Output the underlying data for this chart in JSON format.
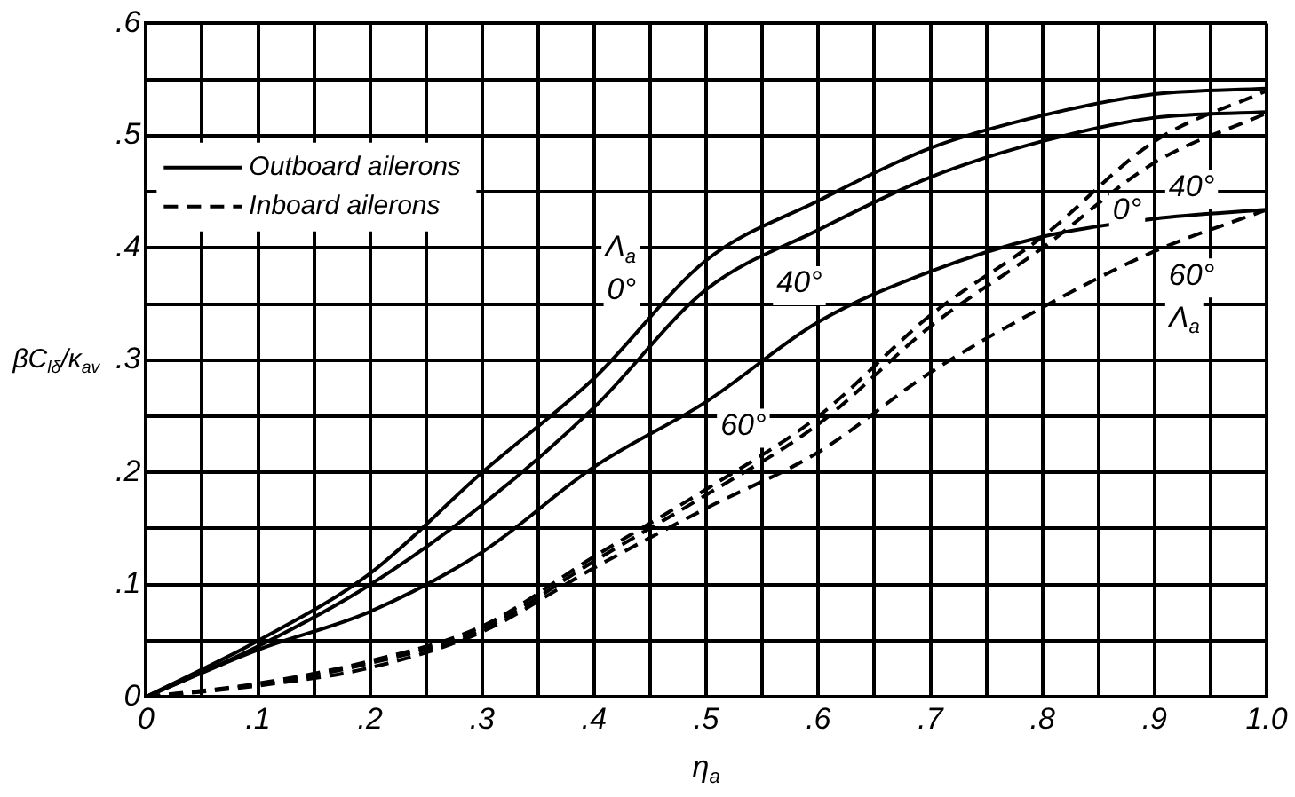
{
  "chart_data": {
    "type": "line",
    "xlabel": "η$_{a}$",
    "ylabel": "βC$_{lδ}$/κ$_{av}$",
    "x": [
      0,
      0.1,
      0.2,
      0.3,
      0.4,
      0.5,
      0.6,
      0.7,
      0.8,
      0.9,
      1.0
    ],
    "series": [
      {
        "name": "Outboard ailerons",
        "color": "#000000",
        "line_style": "solid",
        "values": [
          0,
          0.05,
          0.11,
          0.2,
          0.284,
          0.389,
          0.442,
          0.489,
          0.518,
          0.537,
          0.542
        ]
      },
      {
        "color": "#000000",
        "line_style": "solid",
        "values": [
          0,
          0.045,
          0.1,
          0.171,
          0.258,
          0.363,
          0.416,
          0.463,
          0.495,
          0.516,
          0.521
        ]
      },
      {
        "color": "#000000",
        "line_style": "solid",
        "values": [
          0,
          0.042,
          0.076,
          0.129,
          0.205,
          0.263,
          0.334,
          0.379,
          0.41,
          0.426,
          0.434
        ]
      },
      {
        "name": "Inboard ailerons",
        "color": "#000000",
        "line_style": "dashed",
        "values": [
          0,
          0.012,
          0.032,
          0.063,
          0.125,
          0.185,
          0.25,
          0.34,
          0.41,
          0.495,
          0.54
        ]
      },
      {
        "color": "#000000",
        "line_style": "dashed",
        "values": [
          0,
          0.011,
          0.03,
          0.06,
          0.121,
          0.18,
          0.243,
          0.33,
          0.4,
          0.476,
          0.52
        ]
      },
      {
        "color": "#000000",
        "line_style": "dashed",
        "values": [
          0,
          0.01,
          0.026,
          0.058,
          0.115,
          0.168,
          0.218,
          0.289,
          0.347,
          0.397,
          0.434
        ]
      }
    ],
    "xlim": [
      0,
      1.0
    ],
    "ylim": [
      0,
      0.6
    ],
    "xticks": [
      0,
      {
        "value": 0.05,
        "label": null
      },
      {
        "value": 0.1,
        "label": ".1"
      },
      {
        "value": 0.15,
        "label": null
      },
      {
        "value": 0.2,
        "label": ".2"
      },
      {
        "value": 0.25,
        "label": null
      },
      {
        "value": 0.3,
        "label": ".3"
      },
      {
        "value": 0.35,
        "label": null
      },
      {
        "value": 0.4,
        "label": ".4"
      },
      {
        "value": 0.45,
        "label": null
      },
      {
        "value": 0.5,
        "label": ".5"
      },
      {
        "value": 0.55,
        "label": null
      },
      {
        "value": 0.6,
        "label": ".6"
      },
      {
        "value": 0.65,
        "label": null
      },
      {
        "value": 0.7,
        "label": ".7"
      },
      {
        "value": 0.75,
        "label": null
      },
      {
        "value": 0.8,
        "label": ".8"
      },
      {
        "value": 0.85,
        "label": null
      },
      {
        "value": 0.9,
        "label": ".9"
      },
      {
        "value": 0.95,
        "label": null
      },
      {
        "value": 1.0,
        "label": "1.0"
      }
    ],
    "yticks": [
      0,
      {
        "value": 0.05,
        "label": null
      },
      {
        "value": 0.1,
        "label": ".1"
      },
      {
        "value": 0.15,
        "label": null
      },
      {
        "value": 0.2,
        "label": ".2"
      },
      {
        "value": 0.25,
        "label": null
      },
      {
        "value": 0.3,
        "label": ".3"
      },
      {
        "value": 0.35,
        "label": null
      },
      {
        "value": 0.4,
        "label": ".4"
      },
      {
        "value": 0.45,
        "label": null
      },
      {
        "value": 0.5,
        "label": ".5"
      },
      {
        "value": 0.55,
        "label": null
      },
      {
        "value": 0.6,
        "label": ".6"
      }
    ],
    "grid": true,
    "legend": "top left",
    "marker": "none",
    "annotations": [
      "Λ$_{a}$",
      {
        "text": "0°",
        "x": 0.45,
        "y": 0.34
      },
      {
        "text": "40°",
        "x": 0.55,
        "y": 0.39
      },
      {
        "text": "60°",
        "x": 0.5,
        "y": 0.263
      },
      {
        "text": "0°",
        "x": 0.85,
        "y": 0.455
      },
      {
        "text": "40°",
        "x": 0.9,
        "y": 0.476
      },
      {
        "text": "60°",
        "x": 0.9,
        "y": 0.397
      },
      "Λ$_{a}$"
    ]
  }
}
